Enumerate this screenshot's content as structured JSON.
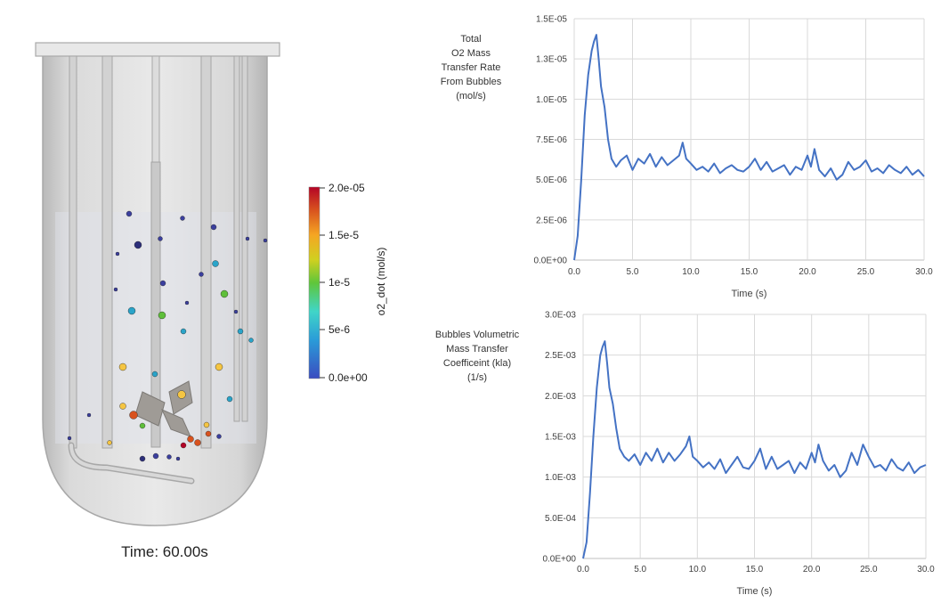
{
  "simulation": {
    "time_label": "Time: 60.00s",
    "colorbar": {
      "title": "o2_dot (mol/s)",
      "tick_labels": [
        "2.0e-05",
        "1.5e-5",
        "1e-5",
        "5e-6",
        "0.0e+00"
      ],
      "range": [
        0,
        2e-05
      ]
    }
  },
  "chart_data": [
    {
      "type": "line",
      "ylabel_lines": [
        "Total",
        "O2 Mass",
        "Transfer Rate",
        "From Bubbles",
        "(mol/s)"
      ],
      "xlabel": "Time (s)",
      "xlim": [
        0,
        30
      ],
      "ylim": [
        0,
        1.5e-05
      ],
      "xticks": [
        "0.0",
        "5.0",
        "10.0",
        "15.0",
        "20.0",
        "25.0",
        "30.0"
      ],
      "yticks": [
        "0.0E+00",
        "2.5E-06",
        "5.0E-06",
        "7.5E-06",
        "1.0E-05",
        "1.3E-05",
        "1.5E-05"
      ],
      "line_color": "#4472c4",
      "grid": true,
      "series": [
        {
          "name": "O2 mass transfer rate",
          "x": [
            0,
            0.3,
            0.6,
            0.9,
            1.2,
            1.5,
            1.7,
            1.9,
            2.1,
            2.3,
            2.6,
            2.9,
            3.2,
            3.6,
            4,
            4.5,
            5,
            5.5,
            6,
            6.5,
            7,
            7.5,
            8,
            8.5,
            9,
            9.3,
            9.6,
            10,
            10.5,
            11,
            11.5,
            12,
            12.5,
            13,
            13.5,
            14,
            14.5,
            15,
            15.5,
            16,
            16.5,
            17,
            17.5,
            18,
            18.5,
            19,
            19.5,
            20,
            20.3,
            20.6,
            21,
            21.5,
            22,
            22.5,
            23,
            23.5,
            24,
            24.5,
            25,
            25.5,
            26,
            26.5,
            27,
            27.5,
            28,
            28.5,
            29,
            29.5,
            30
          ],
          "y": [
            0,
            1.5e-06,
            5e-06,
            9e-06,
            1.15e-05,
            1.3e-05,
            1.36e-05,
            1.4e-05,
            1.25e-05,
            1.08e-05,
            9.5e-06,
            7.5e-06,
            6.3e-06,
            5.8e-06,
            6.2e-06,
            6.5e-06,
            5.6e-06,
            6.3e-06,
            6e-06,
            6.6e-06,
            5.8e-06,
            6.4e-06,
            5.9e-06,
            6.2e-06,
            6.5e-06,
            7.3e-06,
            6.3e-06,
            6e-06,
            5.6e-06,
            5.8e-06,
            5.5e-06,
            6e-06,
            5.4e-06,
            5.7e-06,
            5.9e-06,
            5.6e-06,
            5.5e-06,
            5.8e-06,
            6.3e-06,
            5.6e-06,
            6.1e-06,
            5.5e-06,
            5.7e-06,
            5.9e-06,
            5.3e-06,
            5.8e-06,
            5.6e-06,
            6.5e-06,
            5.8e-06,
            6.9e-06,
            5.6e-06,
            5.2e-06,
            5.7e-06,
            5e-06,
            5.3e-06,
            6.1e-06,
            5.6e-06,
            5.8e-06,
            6.2e-06,
            5.5e-06,
            5.7e-06,
            5.4e-06,
            5.9e-06,
            5.6e-06,
            5.4e-06,
            5.8e-06,
            5.3e-06,
            5.6e-06,
            5.2e-06
          ]
        }
      ]
    },
    {
      "type": "line",
      "ylabel_lines": [
        "Bubbles Volumetric",
        "Mass Transfer",
        "Coefficeint (kla)",
        "(1/s)"
      ],
      "xlabel": "Time (s)",
      "xlim": [
        0,
        30
      ],
      "ylim": [
        0,
        0.003
      ],
      "xticks": [
        "0.0",
        "5.0",
        "10.0",
        "15.0",
        "20.0",
        "25.0",
        "30.0"
      ],
      "yticks": [
        "0.0E+00",
        "5.0E-04",
        "1.0E-03",
        "1.5E-03",
        "2.0E-03",
        "2.5E-03",
        "3.0E-03"
      ],
      "line_color": "#4472c4",
      "grid": true,
      "series": [
        {
          "name": "kla",
          "x": [
            0,
            0.3,
            0.6,
            0.9,
            1.2,
            1.5,
            1.7,
            1.9,
            2.1,
            2.3,
            2.6,
            2.9,
            3.2,
            3.6,
            4,
            4.5,
            5,
            5.5,
            6,
            6.5,
            7,
            7.5,
            8,
            8.5,
            9,
            9.3,
            9.6,
            10,
            10.5,
            11,
            11.5,
            12,
            12.5,
            13,
            13.5,
            14,
            14.5,
            15,
            15.5,
            16,
            16.5,
            17,
            17.5,
            18,
            18.5,
            19,
            19.5,
            20,
            20.3,
            20.6,
            21,
            21.5,
            22,
            22.5,
            23,
            23.5,
            24,
            24.5,
            25,
            25.5,
            26,
            26.5,
            27,
            27.5,
            28,
            28.5,
            29,
            29.5,
            30
          ],
          "y": [
            0,
            0.0002,
            0.0008,
            0.0015,
            0.0021,
            0.0025,
            0.0026,
            0.00267,
            0.0024,
            0.0021,
            0.0019,
            0.0016,
            0.00135,
            0.00125,
            0.0012,
            0.00128,
            0.00115,
            0.0013,
            0.0012,
            0.00135,
            0.00118,
            0.0013,
            0.0012,
            0.00128,
            0.00138,
            0.0015,
            0.00125,
            0.0012,
            0.00112,
            0.00118,
            0.0011,
            0.00122,
            0.00105,
            0.00115,
            0.00125,
            0.00112,
            0.0011,
            0.0012,
            0.00135,
            0.0011,
            0.00125,
            0.0011,
            0.00115,
            0.0012,
            0.00105,
            0.00118,
            0.0011,
            0.0013,
            0.00118,
            0.0014,
            0.0012,
            0.00108,
            0.00115,
            0.001,
            0.00108,
            0.0013,
            0.00115,
            0.0014,
            0.00125,
            0.00112,
            0.00115,
            0.00108,
            0.00122,
            0.00112,
            0.00108,
            0.00118,
            0.00105,
            0.00112,
            0.00115
          ]
        }
      ]
    }
  ]
}
